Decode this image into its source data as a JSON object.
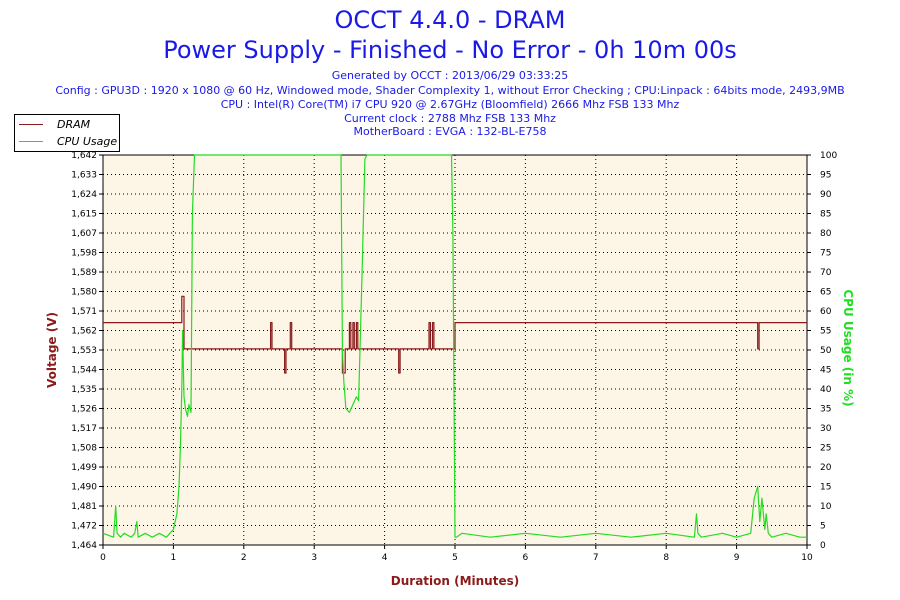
{
  "header": {
    "title_line1": "OCCT 4.4.0 - DRAM",
    "title_line2": "Power Supply - Finished - No Error - 0h 10m 00s",
    "info_lines": [
      "Generated by OCCT : 2013/06/29 03:33:25",
      "Config : GPU3D : 1920 x 1080 @ 60 Hz, Windowed mode, Shader Complexity 1, without Error Checking ; CPU:Linpack : 64bits mode, 2493,9MB",
      "CPU : Intel(R) Core(TM) i7 CPU 920 @ 2.67GHz (Bloomfield) 2666 Mhz FSB 133 Mhz",
      "Current clock : 2788 Mhz FSB 133 Mhz",
      "MotherBoard : EVGA : 132-BL-E758"
    ]
  },
  "legend": {
    "items": [
      {
        "label": "DRAM",
        "color": "#8b1a1a"
      },
      {
        "label": "CPU Usage",
        "color": "#22dd22"
      }
    ]
  },
  "chart_data": {
    "type": "line",
    "xlabel": "Duration (Minutes)",
    "ylabel_left": "Voltage (V)",
    "ylabel_right": "CPU Usage (in %)",
    "xlim": [
      0,
      10
    ],
    "ylim_left": [
      1.464,
      1.642
    ],
    "ylim_right": [
      0,
      100
    ],
    "x_ticks": [
      "0",
      "1",
      "2",
      "3",
      "4",
      "5",
      "6",
      "7",
      "8",
      "9",
      "10"
    ],
    "y_left_ticks": [
      "1,464",
      "1,472",
      "1,481",
      "1,490",
      "1,499",
      "1,508",
      "1,517",
      "1,526",
      "1,535",
      "1,544",
      "1,553",
      "1,562",
      "1,571",
      "1,580",
      "1,589",
      "1,598",
      "1,607",
      "1,615",
      "1,624",
      "1,633",
      "1,642"
    ],
    "y_right_ticks": [
      "0",
      "5",
      "10",
      "15",
      "20",
      "25",
      "30",
      "35",
      "40",
      "45",
      "50",
      "55",
      "60",
      "65",
      "70",
      "75",
      "80",
      "85",
      "90",
      "95",
      "100"
    ],
    "grid": true,
    "legend_position": "top-left",
    "series": [
      {
        "name": "DRAM",
        "axis": "left",
        "color": "#8b1a1a",
        "x": [
          0,
          1.12,
          1.12,
          1.15,
          1.15,
          2.38,
          2.38,
          2.4,
          2.4,
          2.58,
          2.58,
          2.6,
          2.6,
          2.66,
          2.66,
          2.68,
          2.68,
          3.4,
          3.4,
          3.44,
          3.44,
          3.5,
          3.5,
          3.52,
          3.52,
          3.55,
          3.55,
          3.57,
          3.57,
          3.6,
          3.6,
          3.62,
          3.62,
          4.2,
          4.2,
          4.22,
          4.22,
          4.63,
          4.63,
          4.65,
          4.65,
          4.68,
          4.68,
          4.7,
          4.7,
          5.0,
          5.0,
          9.3,
          9.3,
          9.32,
          9.32,
          9.34,
          9.34,
          10
        ],
        "y": [
          1.5655,
          1.5655,
          1.5775,
          1.5775,
          1.5535,
          1.5535,
          1.5655,
          1.5655,
          1.5535,
          1.5535,
          1.5425,
          1.5425,
          1.5535,
          1.5535,
          1.5655,
          1.5655,
          1.5535,
          1.5535,
          1.5425,
          1.5425,
          1.5535,
          1.5535,
          1.5655,
          1.5655,
          1.5535,
          1.5535,
          1.5655,
          1.5655,
          1.5535,
          1.5535,
          1.5655,
          1.5655,
          1.5535,
          1.5535,
          1.5425,
          1.5425,
          1.5535,
          1.5535,
          1.5655,
          1.5655,
          1.5535,
          1.5535,
          1.5655,
          1.5655,
          1.5535,
          1.5535,
          1.5655,
          1.5655,
          1.5535,
          1.5535,
          1.5655,
          1.5655,
          1.5655,
          1.5655
        ]
      },
      {
        "name": "CPU Usage",
        "axis": "right",
        "color": "#22dd22",
        "x": [
          0,
          0.15,
          0.18,
          0.2,
          0.25,
          0.3,
          0.4,
          0.45,
          0.48,
          0.5,
          0.6,
          0.7,
          0.8,
          0.9,
          1.0,
          1.05,
          1.08,
          1.1,
          1.12,
          1.13,
          1.15,
          1.17,
          1.2,
          1.22,
          1.25,
          1.27,
          1.3,
          1.32,
          2.0,
          3.0,
          3.35,
          3.38,
          3.4,
          3.42,
          3.45,
          3.5,
          3.55,
          3.6,
          3.63,
          3.65,
          3.68,
          3.72,
          3.75,
          4.0,
          4.5,
          4.95,
          4.97,
          5.0,
          5.02,
          5.1,
          5.5,
          6.0,
          6.5,
          7.0,
          7.5,
          8.0,
          8.4,
          8.43,
          8.45,
          8.5,
          8.8,
          9.0,
          9.2,
          9.25,
          9.3,
          9.33,
          9.36,
          9.4,
          9.42,
          9.45,
          9.5,
          9.7,
          9.9,
          10
        ],
        "y": [
          3,
          2,
          10,
          3,
          2,
          3,
          2,
          3,
          6,
          2,
          3,
          2,
          3,
          2,
          4,
          8,
          15,
          25,
          40,
          55,
          38,
          35,
          33,
          36,
          34,
          85,
          100,
          100,
          100,
          100,
          100,
          100,
          50,
          42,
          35,
          34,
          36,
          38,
          37,
          50,
          70,
          99,
          100,
          100,
          100,
          100,
          80,
          2,
          2,
          3,
          2,
          3,
          2,
          3,
          2,
          3,
          2,
          8,
          3,
          2,
          3,
          2,
          3,
          12,
          15,
          6,
          12,
          4,
          8,
          3,
          2,
          3,
          2,
          2
        ]
      }
    ]
  }
}
